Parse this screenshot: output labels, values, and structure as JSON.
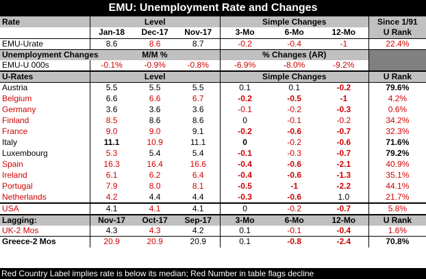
{
  "title": "EMU: Unemployment Rate and Changes",
  "header1": {
    "rate": "Rate",
    "level": "Level",
    "simple": "Simple Changes",
    "since": "Since 1/91",
    "jan": "Jan-18",
    "dec": "Dec-17",
    "nov": "Nov-17",
    "m3": "3-Mo",
    "m6": "6-Mo",
    "m12": "12-Mo",
    "urank": "U Rank"
  },
  "emu_urate": {
    "label": "EMU-Urate",
    "v1": "8.6",
    "v2": "8.6",
    "v3": "8.7",
    "c3": "-0.2",
    "c6": "-0.4",
    "c12": "-1",
    "rank": "22.4%"
  },
  "header2": {
    "label": "Unemployment Changes",
    "mm": "M/M %",
    "ar": "% Changes (AR)"
  },
  "emu_000s": {
    "label": "EMU-U 000s",
    "v1": "-0.1%",
    "v2": "-0.9%",
    "v3": "-0.8%",
    "c3": "-6.9%",
    "c6": "-8.0%",
    "c12": "-9.2%"
  },
  "header3": {
    "label": "U-Rates",
    "level": "Level",
    "simple": "Simple Changes",
    "urank": "U Rank"
  },
  "countries": [
    {
      "name": "Austria",
      "v1": "5.5",
      "v2": "5.5",
      "v3": "5.5",
      "c3": "0.1",
      "c6": "0.1",
      "c12": "-0.2",
      "rank": "79.6%"
    },
    {
      "name": "Belgium",
      "v1": "6.6",
      "v2": "6.6",
      "v3": "6.7",
      "c3": "-0.2",
      "c6": "-0.5",
      "c12": "-1",
      "rank": "4.2%"
    },
    {
      "name": "Germany",
      "v1": "3.6",
      "v2": "3.6",
      "v3": "3.6",
      "c3": "-0.1",
      "c6": "-0.2",
      "c12": "-0.3",
      "rank": "0.6%"
    },
    {
      "name": "Finland",
      "v1": "8.5",
      "v2": "8.6",
      "v3": "8.6",
      "c3": "0",
      "c6": "-0.1",
      "c12": "-0.2",
      "rank": "34.2%"
    },
    {
      "name": "France",
      "v1": "9.0",
      "v2": "9.0",
      "v3": "9.1",
      "c3": "-0.2",
      "c6": "-0.6",
      "c12": "-0.7",
      "rank": "32.3%"
    },
    {
      "name": "Italy",
      "v1": "11.1",
      "v2": "10.9",
      "v3": "11.1",
      "c3": "0",
      "c6": "-0.2",
      "c12": "-0.6",
      "rank": "71.6%"
    },
    {
      "name": "Luxembourg",
      "v1": "5.3",
      "v2": "5.4",
      "v3": "5.4",
      "c3": "-0.1",
      "c6": "-0.3",
      "c12": "-0.7",
      "rank": "79.2%"
    },
    {
      "name": "Spain",
      "v1": "16.3",
      "v2": "16.4",
      "v3": "16.6",
      "c3": "-0.4",
      "c6": "-0.6",
      "c12": "-2.1",
      "rank": "40.9%"
    },
    {
      "name": "Ireland",
      "v1": "6.1",
      "v2": "6.2",
      "v3": "6.4",
      "c3": "-0.4",
      "c6": "-0.6",
      "c12": "-1.3",
      "rank": "35.1%"
    },
    {
      "name": "Portugal",
      "v1": "7.9",
      "v2": "8.0",
      "v3": "8.1",
      "c3": "-0.5",
      "c6": "-1",
      "c12": "-2.2",
      "rank": "44.1%"
    },
    {
      "name": "Netherlands",
      "v1": "4.2",
      "v2": "4.4",
      "v3": "4.4",
      "c3": "-0.3",
      "c6": "-0.6",
      "c12": "1.0",
      "rank": "21.7%"
    }
  ],
  "usa": {
    "name": "USA",
    "v1": "4.1",
    "v2": "4.1",
    "v3": "4.1",
    "c3": "0",
    "c6": "-0.2",
    "c12": "-0.7",
    "rank": "5.8%"
  },
  "header4": {
    "label": "Lagging:",
    "nov": "Nov-17",
    "oct": "Oct-17",
    "sep": "Sep-17",
    "m3": "3-Mo",
    "m6": "6-Mo",
    "m12": "12-Mo",
    "urank": "U Rank"
  },
  "lagging": [
    {
      "name": "UK-2 Mos",
      "v1": "4.3",
      "v2": "4.3",
      "v3": "4.2",
      "c3": "0.1",
      "c6": "-0.1",
      "c12": "-0.4",
      "rank": "1.6%"
    },
    {
      "name": "Greece-2 Mos",
      "v1": "20.9",
      "v2": "20.9",
      "v3": "20.9",
      "c3": "0.1",
      "c6": "-0.8",
      "c12": "-2.4",
      "rank": "70.8%"
    }
  ],
  "footer": "Red Country Label implies rate is below its median; Red Number in table flags decline",
  "colors": {
    "red": "#d00000",
    "gray": "#c0c0c0",
    "dark": "#808080",
    "black": "#000000"
  }
}
